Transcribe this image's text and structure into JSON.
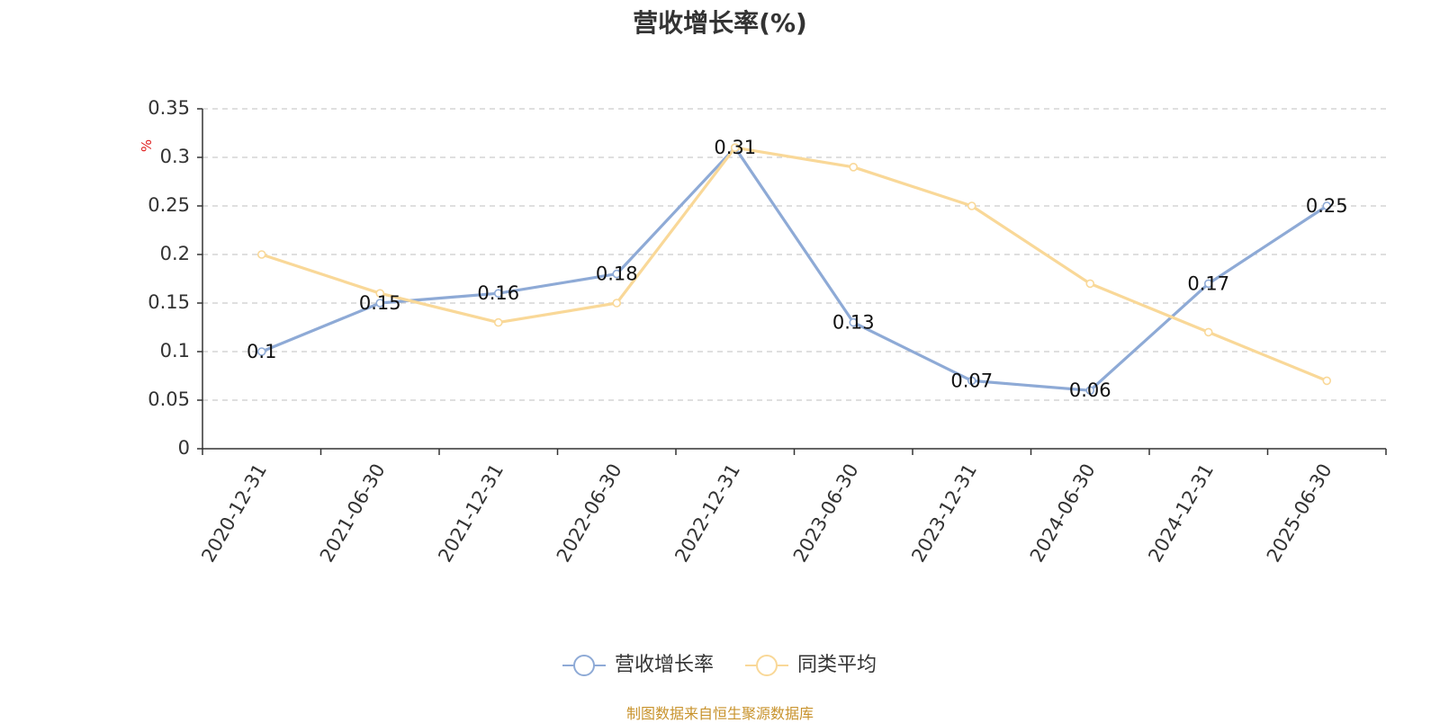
{
  "title": "营收增长率(%)",
  "source": "制图数据来自恒生聚源数据库",
  "chart_data": {
    "type": "line",
    "title": "营收增长率(%)",
    "ylabel": "%",
    "ylim": [
      0,
      0.35
    ],
    "yticks": [
      0,
      0.05,
      0.1,
      0.15,
      0.2,
      0.25,
      0.3,
      0.35
    ],
    "grid": true,
    "legend_position": "bottom-center",
    "categories": [
      "2020-12-31",
      "2021-06-30",
      "2021-12-31",
      "2022-06-30",
      "2022-12-31",
      "2023-06-30",
      "2023-12-31",
      "2024-06-30",
      "2024-12-31",
      "2025-06-30"
    ],
    "series": [
      {
        "name": "营收增长率",
        "color": "#8eaad6",
        "show_labels": true,
        "values": [
          0.1,
          0.15,
          0.16,
          0.18,
          0.31,
          0.13,
          0.07,
          0.06,
          0.17,
          0.25
        ]
      },
      {
        "name": "同类平均",
        "color": "#f9d898",
        "show_labels": false,
        "values": [
          0.2,
          0.16,
          0.13,
          0.15,
          0.31,
          0.29,
          0.25,
          0.17,
          0.12,
          0.07
        ]
      }
    ]
  }
}
